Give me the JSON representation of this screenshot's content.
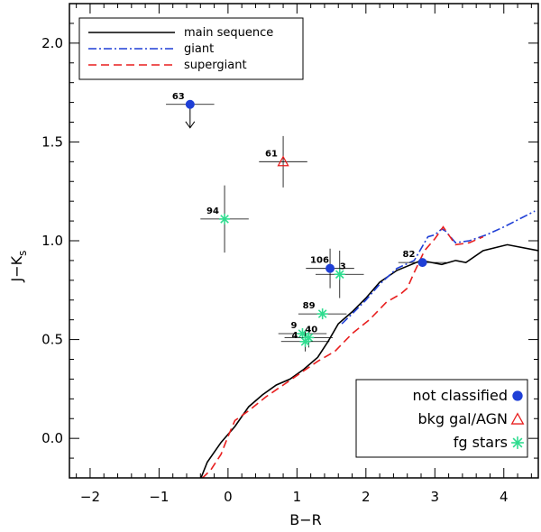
{
  "chart_data": {
    "type": "scatter",
    "xlabel": "B−R",
    "ylabel_main": "J−K",
    "ylabel_sub": "s",
    "xlim": [
      -2.3,
      4.5
    ],
    "ylim": [
      -0.2,
      2.2
    ],
    "x_ticks": [
      {
        "value": -2,
        "label": "−2"
      },
      {
        "value": -1,
        "label": "−1"
      },
      {
        "value": 0,
        "label": "0"
      },
      {
        "value": 1,
        "label": "1"
      },
      {
        "value": 2,
        "label": "2"
      },
      {
        "value": 3,
        "label": "3"
      },
      {
        "value": 4,
        "label": "4"
      }
    ],
    "y_ticks": [
      {
        "value": 0.0,
        "label": "0.0"
      },
      {
        "value": 0.5,
        "label": "0.5"
      },
      {
        "value": 1.0,
        "label": "1.0"
      },
      {
        "value": 1.5,
        "label": "1.5"
      },
      {
        "value": 2.0,
        "label": "2.0"
      }
    ],
    "sequences": [
      {
        "name": "main sequence",
        "color": "#000000",
        "dash": "solid",
        "x": [
          -0.45,
          -0.3,
          -0.1,
          0.1,
          0.3,
          0.5,
          0.7,
          0.9,
          1.1,
          1.3,
          1.45,
          1.6,
          1.8,
          2.0,
          2.2,
          2.45,
          2.8,
          3.1,
          3.3,
          3.45,
          3.7,
          4.05,
          4.5
        ],
        "y": [
          -0.25,
          -0.12,
          -0.02,
          0.06,
          0.16,
          0.22,
          0.27,
          0.3,
          0.35,
          0.41,
          0.49,
          0.58,
          0.64,
          0.71,
          0.79,
          0.85,
          0.9,
          0.88,
          0.9,
          0.89,
          0.95,
          0.98,
          0.95
        ]
      },
      {
        "name": "giant",
        "color": "#1f3fd6",
        "dash": "dashdot",
        "x": [
          1.65,
          1.8,
          2.0,
          2.2,
          2.45,
          2.7,
          2.9,
          3.0,
          3.1,
          3.15,
          3.3,
          3.5,
          3.75,
          4.0,
          4.45
        ],
        "y": [
          0.58,
          0.63,
          0.7,
          0.78,
          0.86,
          0.9,
          1.02,
          1.03,
          1.06,
          1.05,
          0.99,
          1.0,
          1.03,
          1.07,
          1.15
        ]
      },
      {
        "name": "supergiant",
        "color": "#e81f1f",
        "dash": "dashed",
        "x": [
          -0.5,
          -0.4,
          -0.25,
          -0.1,
          0.0,
          0.1,
          0.3,
          0.55,
          0.8,
          1.05,
          1.3,
          1.55,
          1.8,
          2.05,
          2.3,
          2.5,
          2.6,
          2.7,
          2.85,
          3.0,
          3.12,
          3.3,
          3.5,
          3.7
        ],
        "y": [
          -0.25,
          -0.21,
          -0.16,
          -0.08,
          0.01,
          0.09,
          0.14,
          0.21,
          0.27,
          0.33,
          0.39,
          0.44,
          0.53,
          0.6,
          0.69,
          0.73,
          0.76,
          0.84,
          0.95,
          1.01,
          1.07,
          0.98,
          0.99,
          1.02
        ]
      }
    ],
    "points": [
      {
        "label": "63",
        "class": "not classified",
        "x": -0.55,
        "y": 1.69,
        "xerr": 0.35,
        "yerr": 0,
        "upper_limit": true
      },
      {
        "label": "61",
        "class": "bkg gal/AGN",
        "x": 0.8,
        "y": 1.4,
        "xerr": 0.35,
        "yerr": 0.13
      },
      {
        "label": "94",
        "class": "fg stars",
        "x": -0.05,
        "y": 1.11,
        "xerr": 0.35,
        "yerr": 0.17
      },
      {
        "label": "106",
        "class": "not classified",
        "x": 1.48,
        "y": 0.86,
        "xerr": 0.35,
        "yerr": 0.1
      },
      {
        "label": "3",
        "class": "fg stars",
        "x": 1.62,
        "y": 0.83,
        "xerr": 0.35,
        "yerr": 0.12
      },
      {
        "label": "82",
        "class": "not classified",
        "x": 2.82,
        "y": 0.89,
        "xerr": 0.35,
        "yerr": 0
      },
      {
        "label": "89",
        "class": "fg stars",
        "x": 1.37,
        "y": 0.63,
        "xerr": 0.35,
        "yerr": 0
      },
      {
        "label": "9",
        "class": "fg stars",
        "x": 1.08,
        "y": 0.53,
        "xerr": 0.35,
        "yerr": 0
      },
      {
        "label": "40",
        "class": "fg stars",
        "x": 1.17,
        "y": 0.51,
        "xerr": 0.35,
        "yerr": 0.05
      },
      {
        "label": "4",
        "class": "fg stars",
        "x": 1.12,
        "y": 0.49,
        "xerr": 0.35,
        "yerr": 0.05
      }
    ],
    "legend_lines": [
      {
        "text": "main sequence",
        "color": "#000000",
        "dash": "solid"
      },
      {
        "text": "giant",
        "color": "#1f3fd6",
        "dash": "dashdot"
      },
      {
        "text": "supergiant",
        "color": "#e81f1f",
        "dash": "dashed"
      }
    ],
    "legend_lines_position": "top-left",
    "legend_markers": [
      {
        "text": "not classified",
        "marker": "filled-circle",
        "color": "#1f3fd6"
      },
      {
        "text": "bkg gal/AGN",
        "marker": "open-triangle",
        "color": "#e81f1f"
      },
      {
        "text": "fg stars",
        "marker": "asterisk",
        "color": "#2fdc8f"
      }
    ],
    "legend_markers_position": "bottom-right"
  }
}
